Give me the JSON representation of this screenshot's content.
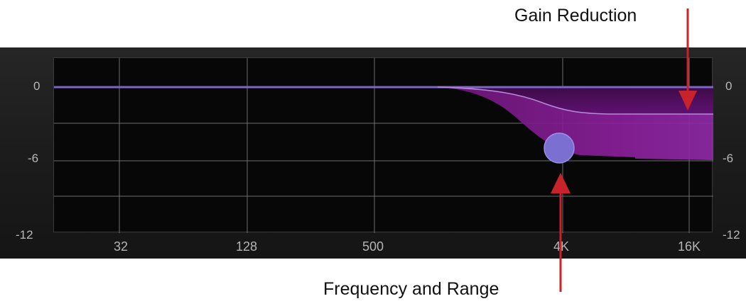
{
  "callouts": {
    "gain_reduction": "Gain Reduction",
    "frequency_range": "Frequency and Range"
  },
  "eq_display": {
    "db_labels_left": [
      "0",
      "-6",
      "-12"
    ],
    "db_labels_right": [
      "0",
      "-6",
      "-12"
    ],
    "freq_labels": [
      "32",
      "128",
      "500",
      "4K",
      "16K"
    ],
    "handle": {
      "frequency_hz": 4000,
      "range_db": -5
    },
    "gain_reduction_db": -2.2
  },
  "colors": {
    "panel_bg": "#1e1e1e",
    "plot_bg": "#070707",
    "grid": "#6e6e6e",
    "curve": "#7d64c6",
    "fill": "#8a1f9a",
    "handle": "#7b6fd1",
    "arrow": "#c8222a"
  }
}
